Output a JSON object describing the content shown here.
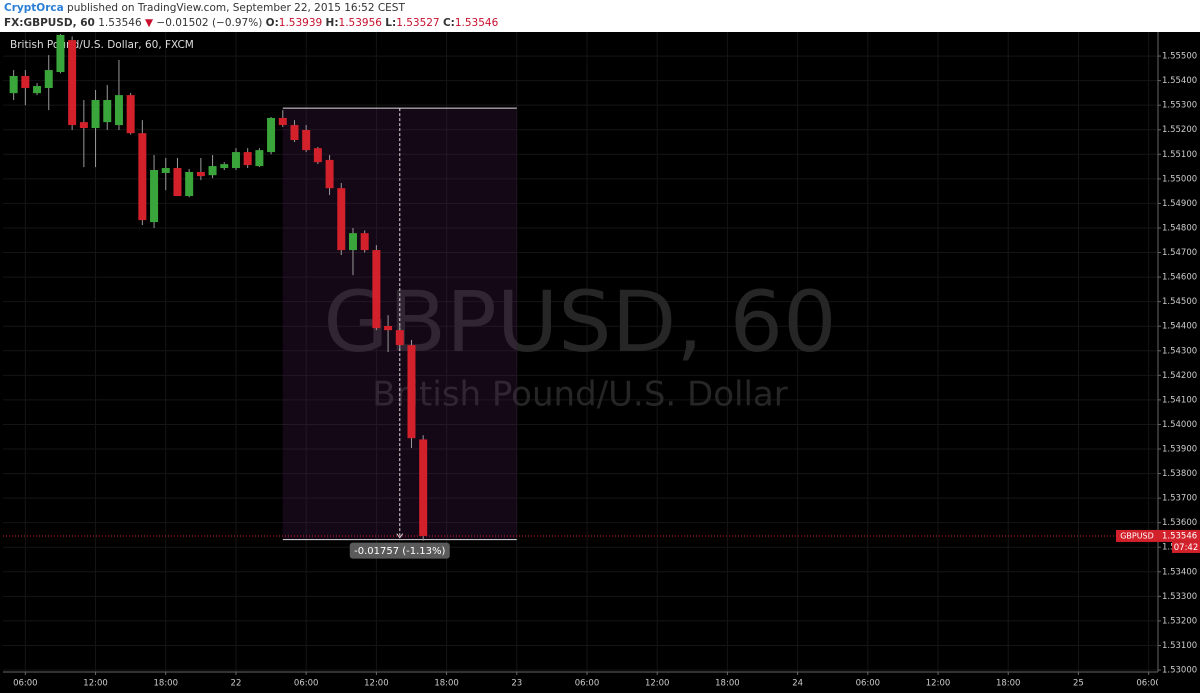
{
  "header": {
    "author": "CryptOrca",
    "published": "published on TradingView.com, September 22, 2015 16:52 CEST",
    "symbol": "FX:GBPUSD, 60",
    "last": "1.53546",
    "change": "−0.01502 (−0.97%)",
    "ohlc": [
      {
        "label": "O:",
        "value": "1.53939"
      },
      {
        "label": "H:",
        "value": "1.53956"
      },
      {
        "label": "L:",
        "value": "1.53527"
      },
      {
        "label": "C:",
        "value": "1.53546"
      }
    ]
  },
  "chart_data": {
    "type": "candlestick",
    "title": "British Pound/U.S. Dollar, 60, FXCM",
    "watermark": {
      "symbol": "GBPUSD, 60",
      "description": "British Pound/U.S. Dollar"
    },
    "up_color": "#3aa53a",
    "down_color": "#d3212b",
    "grid": true,
    "x": [
      5,
      6,
      7,
      8,
      9,
      10,
      11,
      12,
      13,
      14,
      15,
      16,
      17,
      18,
      19,
      20,
      21,
      22,
      23,
      24,
      25,
      26,
      27,
      28,
      29,
      30,
      31,
      32,
      33,
      34,
      35,
      36,
      37,
      38,
      39,
      40
    ],
    "open": [
      1.55349,
      1.55419,
      1.55349,
      1.5537,
      1.55435,
      1.55565,
      1.55231,
      1.55207,
      1.55231,
      1.55219,
      1.55341,
      1.55186,
      1.54824,
      1.55024,
      1.55044,
      1.5493,
      1.55028,
      1.55015,
      1.55044,
      1.55044,
      1.55109,
      1.55052,
      1.55109,
      1.55248,
      1.55219,
      1.55199,
      1.55125,
      1.55077,
      1.54962,
      1.5471,
      1.54779,
      1.5471,
      1.54401,
      1.54384,
      1.54323,
      1.53939
    ],
    "high": [
      1.55443,
      1.55443,
      1.5539,
      1.55504,
      1.5559,
      1.5558,
      1.55321,
      1.55362,
      1.55382,
      1.55484,
      1.5535,
      1.55239,
      1.55097,
      1.55085,
      1.55085,
      1.5504,
      1.55085,
      1.55097,
      1.55068,
      1.55125,
      1.55125,
      1.55125,
      1.55252,
      1.5528,
      1.55239,
      1.55219,
      1.5513,
      1.55097,
      1.54983,
      1.548,
      1.5479,
      1.5473,
      1.54445,
      1.54405,
      1.54344,
      1.53956
    ],
    "low": [
      1.55321,
      1.553,
      1.55341,
      1.5528,
      1.5543,
      1.55199,
      1.55048,
      1.55048,
      1.55199,
      1.55199,
      1.5518,
      1.54812,
      1.548,
      1.54954,
      1.5493,
      1.54925,
      1.54995,
      1.55003,
      1.55036,
      1.55036,
      1.55044,
      1.55048,
      1.551,
      1.55211,
      1.5515,
      1.55109,
      1.5506,
      1.54934,
      1.5469,
      1.54608,
      1.547,
      1.54384,
      1.54295,
      1.54311,
      1.53904,
      1.53527
    ],
    "close": [
      1.55419,
      1.5537,
      1.55378,
      1.55443,
      1.55586,
      1.55219,
      1.55207,
      1.55321,
      1.55321,
      1.55341,
      1.55186,
      1.54832,
      1.55036,
      1.55044,
      1.5493,
      1.55028,
      1.55011,
      1.55052,
      1.5506,
      1.55109,
      1.55056,
      1.55117,
      1.55248,
      1.55219,
      1.55158,
      1.55117,
      1.55068,
      1.54962,
      1.5471,
      1.54779,
      1.5471,
      1.54392,
      1.54384,
      1.54323,
      1.53944,
      1.53546
    ],
    "xlim": [
      4.09,
      102.8
    ],
    "xticks": [
      {
        "value": 6,
        "label": "06:00"
      },
      {
        "value": 12,
        "label": "12:00"
      },
      {
        "value": 18,
        "label": "18:00"
      },
      {
        "value": 24,
        "label": "22"
      },
      {
        "value": 30,
        "label": "06:00"
      },
      {
        "value": 36,
        "label": "12:00"
      },
      {
        "value": 42,
        "label": "18:00"
      },
      {
        "value": 48,
        "label": "23"
      },
      {
        "value": 54,
        "label": "06:00"
      },
      {
        "value": 60,
        "label": "12:00"
      },
      {
        "value": 66,
        "label": "18:00"
      },
      {
        "value": 72,
        "label": "24"
      },
      {
        "value": 78,
        "label": "06:00"
      },
      {
        "value": 84,
        "label": "12:00"
      },
      {
        "value": 90,
        "label": "18:00"
      },
      {
        "value": 96,
        "label": "25"
      },
      {
        "value": 102,
        "label": "06:00"
      }
    ],
    "ylim": [
      1.52992,
      1.55598
    ],
    "yticks": [
      {
        "value": 1.53,
        "label": "1.53000"
      },
      {
        "value": 1.531,
        "label": "1.53100"
      },
      {
        "value": 1.532,
        "label": "1.53200"
      },
      {
        "value": 1.533,
        "label": "1.53300"
      },
      {
        "value": 1.534,
        "label": "1.53400"
      },
      {
        "value": 1.535,
        "label": "1.53500"
      },
      {
        "value": 1.536,
        "label": "1.53600"
      },
      {
        "value": 1.537,
        "label": "1.53700"
      },
      {
        "value": 1.538,
        "label": "1.53800"
      },
      {
        "value": 1.539,
        "label": "1.53900"
      },
      {
        "value": 1.54,
        "label": "1.54000"
      },
      {
        "value": 1.541,
        "label": "1.54100"
      },
      {
        "value": 1.542,
        "label": "1.54200"
      },
      {
        "value": 1.543,
        "label": "1.54300"
      },
      {
        "value": 1.544,
        "label": "1.54400"
      },
      {
        "value": 1.545,
        "label": "1.54500"
      },
      {
        "value": 1.546,
        "label": "1.54600"
      },
      {
        "value": 1.547,
        "label": "1.54700"
      },
      {
        "value": 1.548,
        "label": "1.54800"
      },
      {
        "value": 1.549,
        "label": "1.54900"
      },
      {
        "value": 1.55,
        "label": "1.55000"
      },
      {
        "value": 1.551,
        "label": "1.55100"
      },
      {
        "value": 1.552,
        "label": "1.55200"
      },
      {
        "value": 1.553,
        "label": "1.55300"
      },
      {
        "value": 1.554,
        "label": "1.55400"
      },
      {
        "value": 1.555,
        "label": "1.55500"
      }
    ],
    "last_price": {
      "label": "GBPUSD",
      "value": 1.53546,
      "countdown": "07:42"
    },
    "measure": {
      "x": [
        28,
        48
      ],
      "y": [
        1.55288,
        1.53531
      ],
      "label": "-0.01757 (-1.13%)"
    }
  }
}
